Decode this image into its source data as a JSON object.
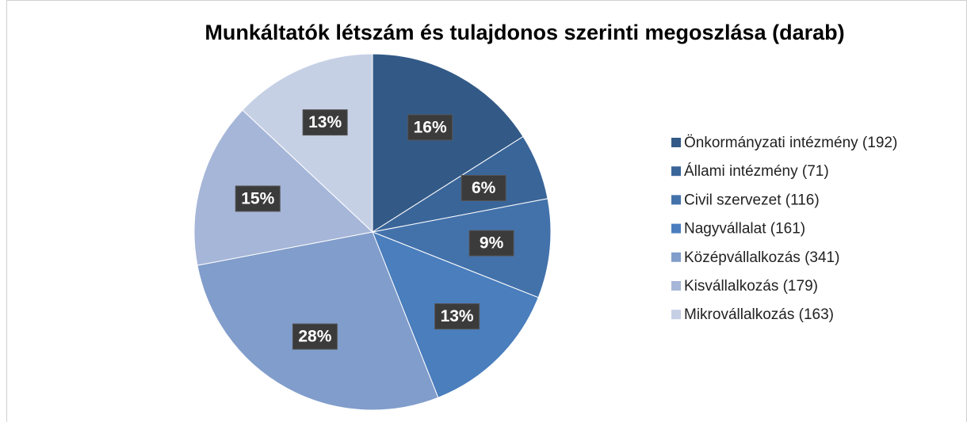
{
  "chart_data": {
    "type": "pie",
    "title": "Munkáltatók létszám és tulajdonos szerinti megoszlása (darab)",
    "categories": [
      "Önkormányzati intézmény (192)",
      "Állami intézmény (71)",
      "Civil szervezet (116)",
      "Nagyvállalat (161)",
      "Középvállalkozás (341)",
      "Kisvállalkozás (179)",
      "Mikrovállalkozás (163)"
    ],
    "values": [
      16,
      6,
      9,
      13,
      28,
      15,
      13
    ],
    "value_labels": [
      "16%",
      "6%",
      "9%",
      "13%",
      "28%",
      "15%",
      "13%"
    ],
    "colors": [
      "#335a87",
      "#3a6599",
      "#4372ab",
      "#4a7ebd",
      "#819dcb",
      "#a6b6d8",
      "#c6d0e5"
    ],
    "legend": "right"
  }
}
